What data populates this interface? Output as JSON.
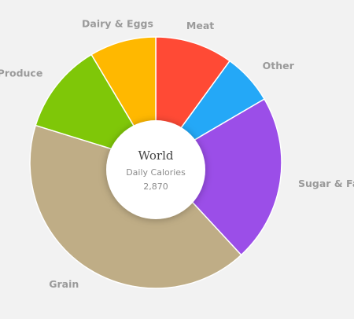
{
  "chart_data": {
    "type": "pie",
    "slices": [
      {
        "label": "Meat",
        "value": 9.6,
        "color": "#ff4a35"
      },
      {
        "label": "Other",
        "value": 6.3,
        "color": "#24a8f7"
      },
      {
        "label": "Sugar & Fat",
        "value": 20.7,
        "color": "#9b4ee8"
      },
      {
        "label": "Grain",
        "value": 40.0,
        "color": "#bfad86"
      },
      {
        "label": "Produce",
        "value": 11.2,
        "color": "#7fc708"
      },
      {
        "label": "Dairy & Eggs",
        "value": 8.2,
        "color": "#ffb800"
      }
    ],
    "center": {
      "title": "World",
      "subtitle": "Daily Calories",
      "value": "2,870"
    }
  }
}
